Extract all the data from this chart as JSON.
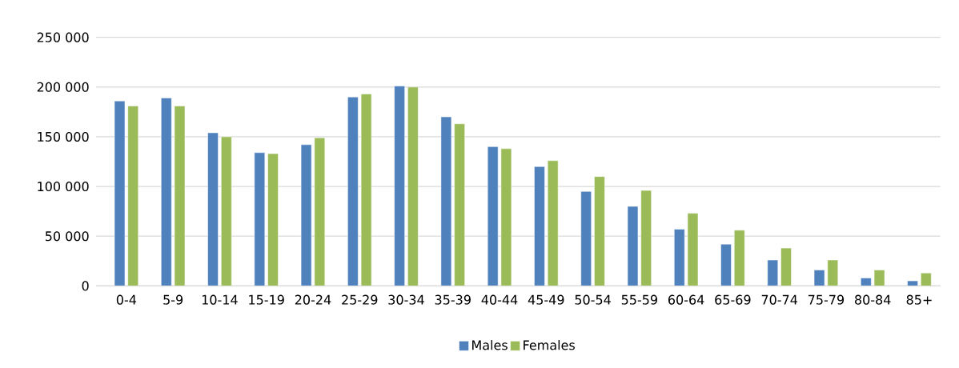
{
  "chart_data": {
    "type": "bar",
    "categories": [
      "0-4",
      "5-9",
      "10-14",
      "15-19",
      "20-24",
      "25-29",
      "30-34",
      "35-39",
      "40-44",
      "45-49",
      "50-54",
      "55-59",
      "60-64",
      "65-69",
      "70-74",
      "75-79",
      "80-84",
      "85+"
    ],
    "series": [
      {
        "name": "Males",
        "color": "#4f81bd",
        "values": [
          186000,
          189000,
          154000,
          134000,
          142000,
          190000,
          201000,
          170000,
          140000,
          120000,
          95000,
          80000,
          57000,
          42000,
          26000,
          16000,
          8000,
          5000
        ]
      },
      {
        "name": "Females",
        "color": "#9bbb59",
        "values": [
          181000,
          181000,
          150000,
          133000,
          149000,
          193000,
          200000,
          163000,
          138000,
          126000,
          110000,
          96000,
          73000,
          56000,
          38000,
          26000,
          16000,
          13000
        ]
      }
    ],
    "ylim": [
      0,
      250000
    ],
    "yticks": [
      {
        "value": 0,
        "label": "0"
      },
      {
        "value": 50000,
        "label": "50 000"
      },
      {
        "value": 100000,
        "label": "100 000"
      },
      {
        "value": 150000,
        "label": "150 000"
      },
      {
        "value": 200000,
        "label": "200 000"
      },
      {
        "value": 250000,
        "label": "250 000"
      }
    ],
    "grid": "y",
    "legend": "bottom"
  }
}
